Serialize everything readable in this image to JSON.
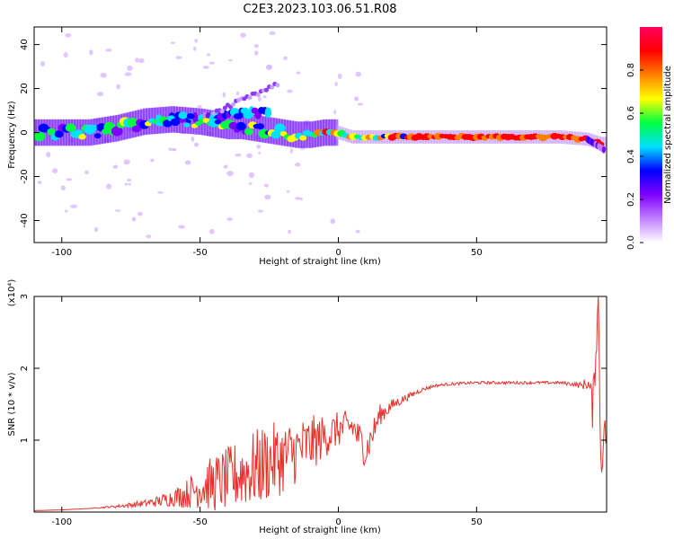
{
  "title": "C2E3.2023.103.06.51.R08",
  "chart_data": [
    {
      "type": "heatmap",
      "xlabel": "Height of straight line (km)",
      "ylabel": "Frequency (Hz)",
      "xlim": [
        -110,
        97
      ],
      "ylim": [
        -50,
        48
      ],
      "xticks": [
        -100,
        -50,
        0,
        50
      ],
      "yticks": [
        -40,
        -20,
        0,
        20,
        40
      ],
      "ridge": {
        "x": [
          -108,
          -100,
          -90,
          -80,
          -70,
          -60,
          -50,
          -40,
          -35,
          -30,
          -25,
          -20,
          -15,
          -10,
          -5,
          0,
          5,
          10,
          20,
          40,
          60,
          80,
          90,
          95
        ],
        "y": [
          0,
          0,
          0,
          2,
          5,
          6,
          5,
          3,
          3,
          2,
          1,
          0,
          -1,
          -1,
          0,
          0,
          -2,
          -2,
          -2,
          -2,
          -2,
          -2,
          -3,
          -5
        ]
      },
      "colorbar": {
        "label": "Normalized spectral amplitude",
        "range": [
          0,
          1
        ],
        "ticks": [
          "0.0",
          "0.2",
          "0.4",
          "0.6",
          "0.8"
        ],
        "colors": [
          "#ffffff",
          "#c080ff",
          "#8000ff",
          "#0000ff",
          "#00e0ff",
          "#00ff40",
          "#ffff00",
          "#ff8000",
          "#ff0000",
          "#ff0060"
        ]
      }
    },
    {
      "type": "line",
      "xlabel": "Height of straight line (km)",
      "ylabel": "SNR (10 * v/v)",
      "y_multiplier": "(x10⁴)",
      "xlim": [
        -110,
        97
      ],
      "ylim": [
        0,
        3
      ],
      "xticks": [
        -100,
        -50,
        0,
        50
      ],
      "yticks": [
        1,
        2,
        3
      ],
      "color": "#e8302a",
      "series": [
        {
          "x": [
            -110,
            -100,
            -90,
            -80,
            -70,
            -65,
            -60,
            -55,
            -50,
            -45,
            -40,
            -35,
            -30,
            -25,
            -20,
            -15,
            -10,
            -5,
            0,
            5,
            10,
            15,
            20,
            25,
            30,
            35,
            40,
            50,
            60,
            70,
            80,
            85,
            88,
            90,
            91,
            92,
            93,
            94,
            95,
            96,
            97
          ],
          "y": [
            0.02,
            0.03,
            0.05,
            0.08,
            0.12,
            0.15,
            0.2,
            0.25,
            0.35,
            0.4,
            0.45,
            0.55,
            0.6,
            0.7,
            0.75,
            0.85,
            0.95,
            1.05,
            1.15,
            1.2,
            0.85,
            1.35,
            1.5,
            1.6,
            1.7,
            1.76,
            1.78,
            1.8,
            1.8,
            1.8,
            1.8,
            1.78,
            1.76,
            1.8,
            1.7,
            1.4,
            2.2,
            3.0,
            0.5,
            1.2,
            1.0
          ],
          "noise": [
            0,
            0,
            0,
            0.02,
            0.05,
            0.08,
            0.12,
            0.2,
            0.3,
            0.4,
            0.45,
            0.5,
            0.55,
            0.55,
            0.5,
            0.45,
            0.4,
            0.3,
            0.25,
            0.22,
            0.25,
            0.15,
            0.08,
            0.05,
            0.03,
            0.02,
            0.02,
            0.02,
            0.02,
            0.02,
            0.02,
            0.03,
            0.05,
            0.1,
            0.2,
            0.3,
            0.3,
            0.3,
            0.3,
            0.2,
            0.2
          ]
        }
      ]
    }
  ]
}
